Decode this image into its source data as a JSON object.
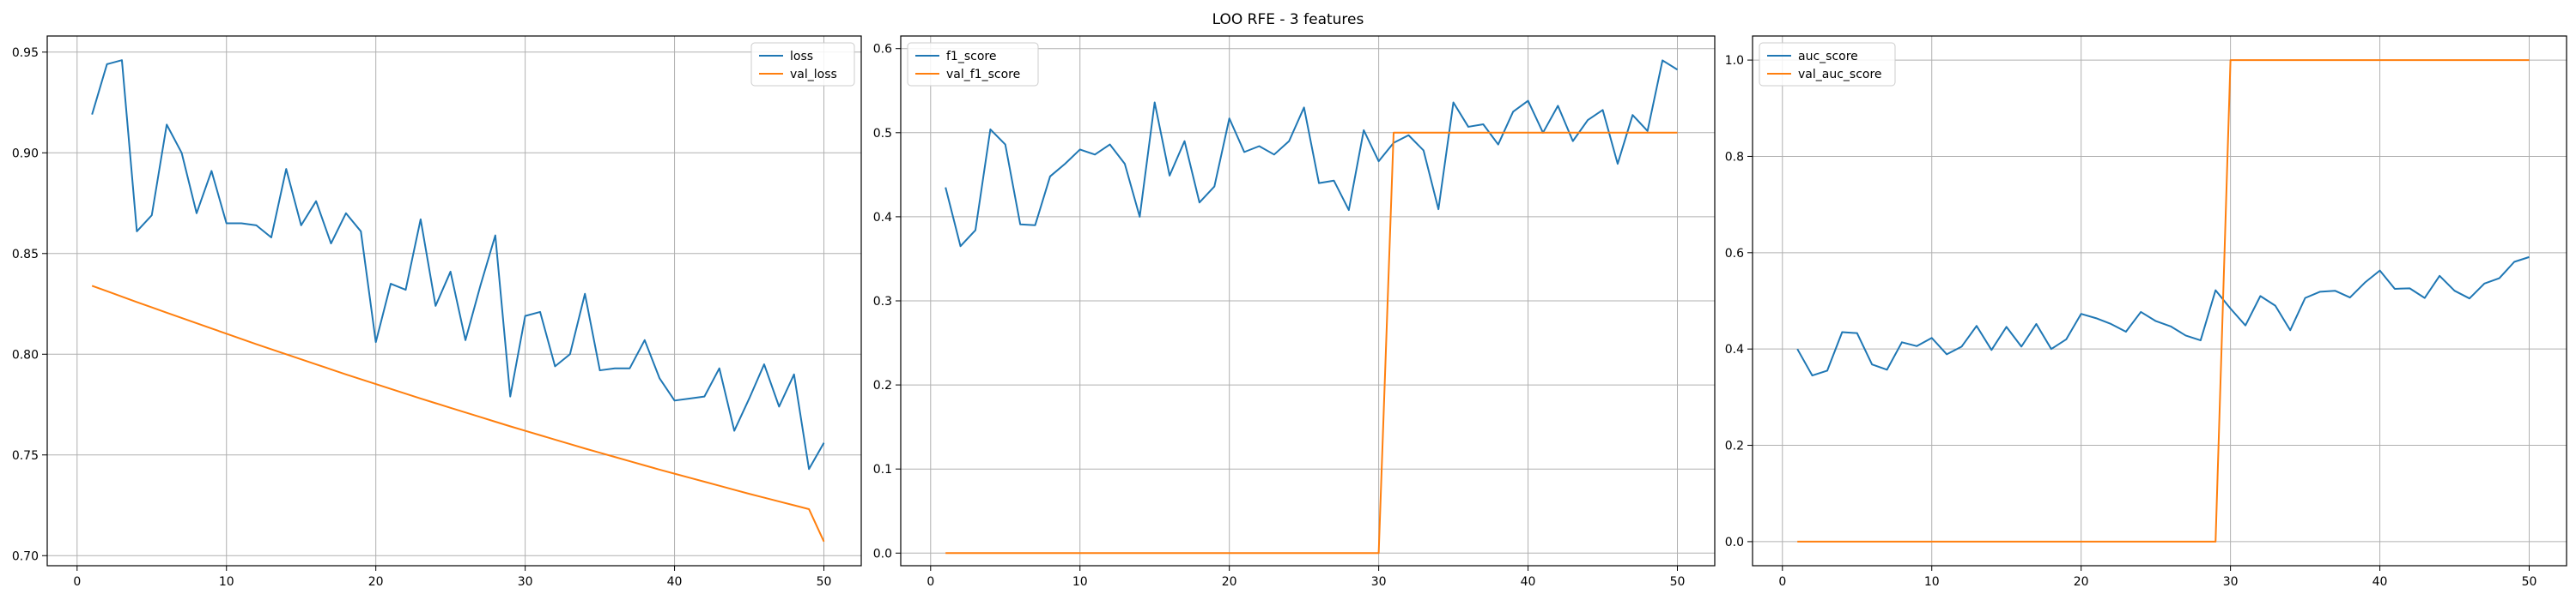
{
  "figure": {
    "title": "LOO RFE - 3 features"
  },
  "colors": {
    "series1": "#1f77b4",
    "series2": "#ff7f0e",
    "grid": "#b0b0b0",
    "axis": "#000000"
  },
  "chart_data": [
    {
      "type": "line",
      "xlim": [
        -2,
        52.5
      ],
      "ylim": [
        0.695,
        0.958
      ],
      "xticks": [
        0,
        10,
        20,
        30,
        40,
        50
      ],
      "yticks": [
        0.7,
        0.75,
        0.8,
        0.85,
        0.9,
        0.95
      ],
      "ytick_labels": [
        "0.70",
        "0.75",
        "0.80",
        "0.85",
        "0.90",
        "0.95"
      ],
      "grid": true,
      "legend_position": "top-right",
      "x": [
        1,
        2,
        3,
        4,
        5,
        6,
        7,
        8,
        9,
        10,
        11,
        12,
        13,
        14,
        15,
        16,
        17,
        18,
        19,
        20,
        21,
        22,
        23,
        24,
        25,
        26,
        27,
        28,
        29,
        30,
        31,
        32,
        33,
        34,
        35,
        36,
        37,
        38,
        39,
        40,
        41,
        42,
        43,
        44,
        45,
        46,
        47,
        48,
        49,
        50
      ],
      "series": [
        {
          "name": "loss",
          "color": "#1f77b4",
          "values": [
            0.919,
            0.944,
            0.946,
            0.861,
            0.869,
            0.914,
            0.9,
            0.87,
            0.891,
            0.865,
            0.865,
            0.864,
            0.858,
            0.892,
            0.864,
            0.876,
            0.855,
            0.87,
            0.861,
            0.806,
            0.835,
            0.832,
            0.867,
            0.824,
            0.841,
            0.807,
            0.834,
            0.859,
            0.779,
            0.819,
            0.821,
            0.794,
            0.8,
            0.83,
            0.792,
            0.793,
            0.793,
            0.807,
            0.788,
            0.777,
            0.778,
            0.779,
            0.793,
            0.762,
            0.778,
            0.795,
            0.774,
            0.79,
            0.743,
            0.756
          ]
        },
        {
          "name": "val_loss",
          "color": "#ff7f0e",
          "values": [
            0.834,
            0.8313,
            0.8286,
            0.8259,
            0.8233,
            0.8206,
            0.818,
            0.8154,
            0.8128,
            0.8102,
            0.8076,
            0.805,
            0.8025,
            0.8,
            0.7975,
            0.795,
            0.7925,
            0.79,
            0.7876,
            0.7852,
            0.7828,
            0.7804,
            0.778,
            0.7757,
            0.7734,
            0.7711,
            0.7688,
            0.7665,
            0.7642,
            0.762,
            0.7598,
            0.7576,
            0.7554,
            0.7532,
            0.7511,
            0.749,
            0.7469,
            0.7448,
            0.7427,
            0.7407,
            0.7387,
            0.7367,
            0.7347,
            0.7327,
            0.7307,
            0.7288,
            0.7269,
            0.725,
            0.7231,
            0.707
          ]
        }
      ]
    },
    {
      "type": "line",
      "xlim": [
        -2,
        52.5
      ],
      "ylim": [
        -0.015,
        0.615
      ],
      "xticks": [
        0,
        10,
        20,
        30,
        40,
        50
      ],
      "yticks": [
        0.0,
        0.1,
        0.2,
        0.3,
        0.4,
        0.5,
        0.6
      ],
      "ytick_labels": [
        "0.0",
        "0.1",
        "0.2",
        "0.3",
        "0.4",
        "0.5",
        "0.6"
      ],
      "grid": true,
      "legend_position": "top-left",
      "x": [
        1,
        2,
        3,
        4,
        5,
        6,
        7,
        8,
        9,
        10,
        11,
        12,
        13,
        14,
        15,
        16,
        17,
        18,
        19,
        20,
        21,
        22,
        23,
        24,
        25,
        26,
        27,
        28,
        29,
        30,
        31,
        32,
        33,
        34,
        35,
        36,
        37,
        38,
        39,
        40,
        41,
        42,
        43,
        44,
        45,
        46,
        47,
        48,
        49,
        50
      ],
      "series": [
        {
          "name": "f1_score",
          "color": "#1f77b4",
          "values": [
            0.435,
            0.365,
            0.384,
            0.504,
            0.486,
            0.391,
            0.39,
            0.448,
            0.463,
            0.48,
            0.474,
            0.486,
            0.463,
            0.4,
            0.536,
            0.449,
            0.49,
            0.417,
            0.436,
            0.517,
            0.477,
            0.484,
            0.474,
            0.49,
            0.53,
            0.44,
            0.443,
            0.408,
            0.503,
            0.466,
            0.488,
            0.497,
            0.479,
            0.409,
            0.536,
            0.507,
            0.51,
            0.486,
            0.525,
            0.538,
            0.5,
            0.532,
            0.49,
            0.515,
            0.527,
            0.463,
            0.521,
            0.502,
            0.586,
            0.575
          ]
        },
        {
          "name": "val_f1_score",
          "color": "#ff7f0e",
          "values": [
            0,
            0,
            0,
            0,
            0,
            0,
            0,
            0,
            0,
            0,
            0,
            0,
            0,
            0,
            0,
            0,
            0,
            0,
            0,
            0,
            0,
            0,
            0,
            0,
            0,
            0,
            0,
            0,
            0,
            0,
            0.5,
            0.5,
            0.5,
            0.5,
            0.5,
            0.5,
            0.5,
            0.5,
            0.5,
            0.5,
            0.5,
            0.5,
            0.5,
            0.5,
            0.5,
            0.5,
            0.5,
            0.5,
            0.5,
            0.5
          ]
        }
      ]
    },
    {
      "type": "line",
      "xlim": [
        -2,
        52.5
      ],
      "ylim": [
        -0.05,
        1.05
      ],
      "xticks": [
        0,
        10,
        20,
        30,
        40,
        50
      ],
      "yticks": [
        0.0,
        0.2,
        0.4,
        0.6,
        0.8,
        1.0
      ],
      "ytick_labels": [
        "0.0",
        "0.2",
        "0.4",
        "0.6",
        "0.8",
        "1.0"
      ],
      "grid": true,
      "legend_position": "top-left",
      "x": [
        1,
        2,
        3,
        4,
        5,
        6,
        7,
        8,
        9,
        10,
        11,
        12,
        13,
        14,
        15,
        16,
        17,
        18,
        19,
        20,
        21,
        22,
        23,
        24,
        25,
        26,
        27,
        28,
        29,
        30,
        31,
        32,
        33,
        34,
        35,
        36,
        37,
        38,
        39,
        40,
        41,
        42,
        43,
        44,
        45,
        46,
        47,
        48,
        49,
        50
      ],
      "series": [
        {
          "name": "auc_score",
          "color": "#1f77b4",
          "values": [
            0.4,
            0.345,
            0.355,
            0.435,
            0.433,
            0.368,
            0.357,
            0.414,
            0.406,
            0.423,
            0.389,
            0.405,
            0.448,
            0.398,
            0.446,
            0.405,
            0.452,
            0.4,
            0.42,
            0.473,
            0.464,
            0.452,
            0.436,
            0.477,
            0.458,
            0.447,
            0.428,
            0.418,
            0.522,
            0.484,
            0.449,
            0.51,
            0.49,
            0.439,
            0.506,
            0.519,
            0.521,
            0.507,
            0.538,
            0.563,
            0.525,
            0.526,
            0.506,
            0.552,
            0.521,
            0.505,
            0.536,
            0.547,
            0.581,
            0.591
          ]
        },
        {
          "name": "val_auc_score",
          "color": "#ff7f0e",
          "values": [
            0,
            0,
            0,
            0,
            0,
            0,
            0,
            0,
            0,
            0,
            0,
            0,
            0,
            0,
            0,
            0,
            0,
            0,
            0,
            0,
            0,
            0,
            0,
            0,
            0,
            0,
            0,
            0,
            0,
            1,
            1,
            1,
            1,
            1,
            1,
            1,
            1,
            1,
            1,
            1,
            1,
            1,
            1,
            1,
            1,
            1,
            1,
            1,
            1,
            1
          ]
        }
      ]
    }
  ]
}
